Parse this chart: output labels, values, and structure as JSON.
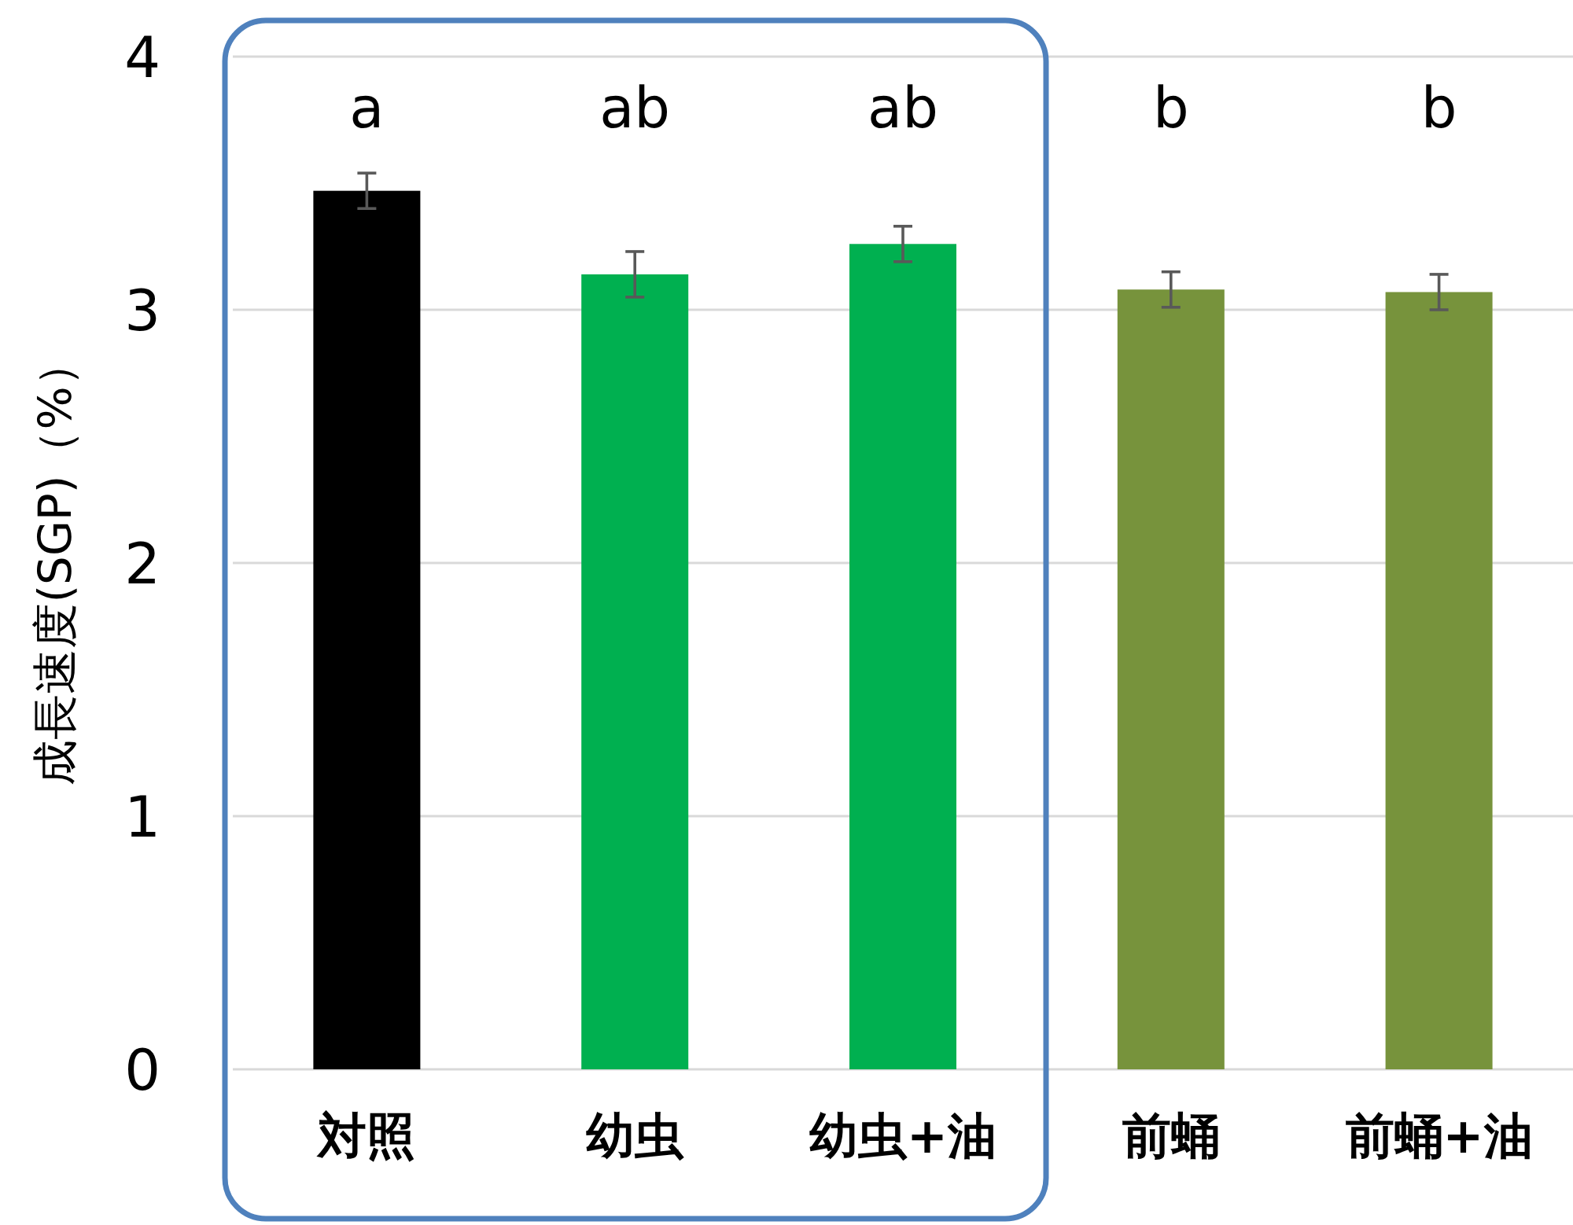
{
  "chart_data": {
    "type": "bar",
    "ylabel": "成長速度(SGP)（%）",
    "categories": [
      "対照",
      "幼虫",
      "幼虫+油",
      "前蛹",
      "前蛹+油"
    ],
    "values": [
      3.47,
      3.14,
      3.26,
      3.08,
      3.07
    ],
    "colors": [
      "#000000",
      "#00b050",
      "#00b050",
      "#77933c",
      "#77933c"
    ],
    "errors": [
      0.07,
      0.09,
      0.07,
      0.07,
      0.07
    ],
    "ylim": [
      0,
      4
    ],
    "yticks": [
      0,
      1,
      2,
      3,
      4
    ],
    "grid": "y",
    "annotations": [
      "a",
      "ab",
      "ab",
      "b",
      "b"
    ]
  }
}
